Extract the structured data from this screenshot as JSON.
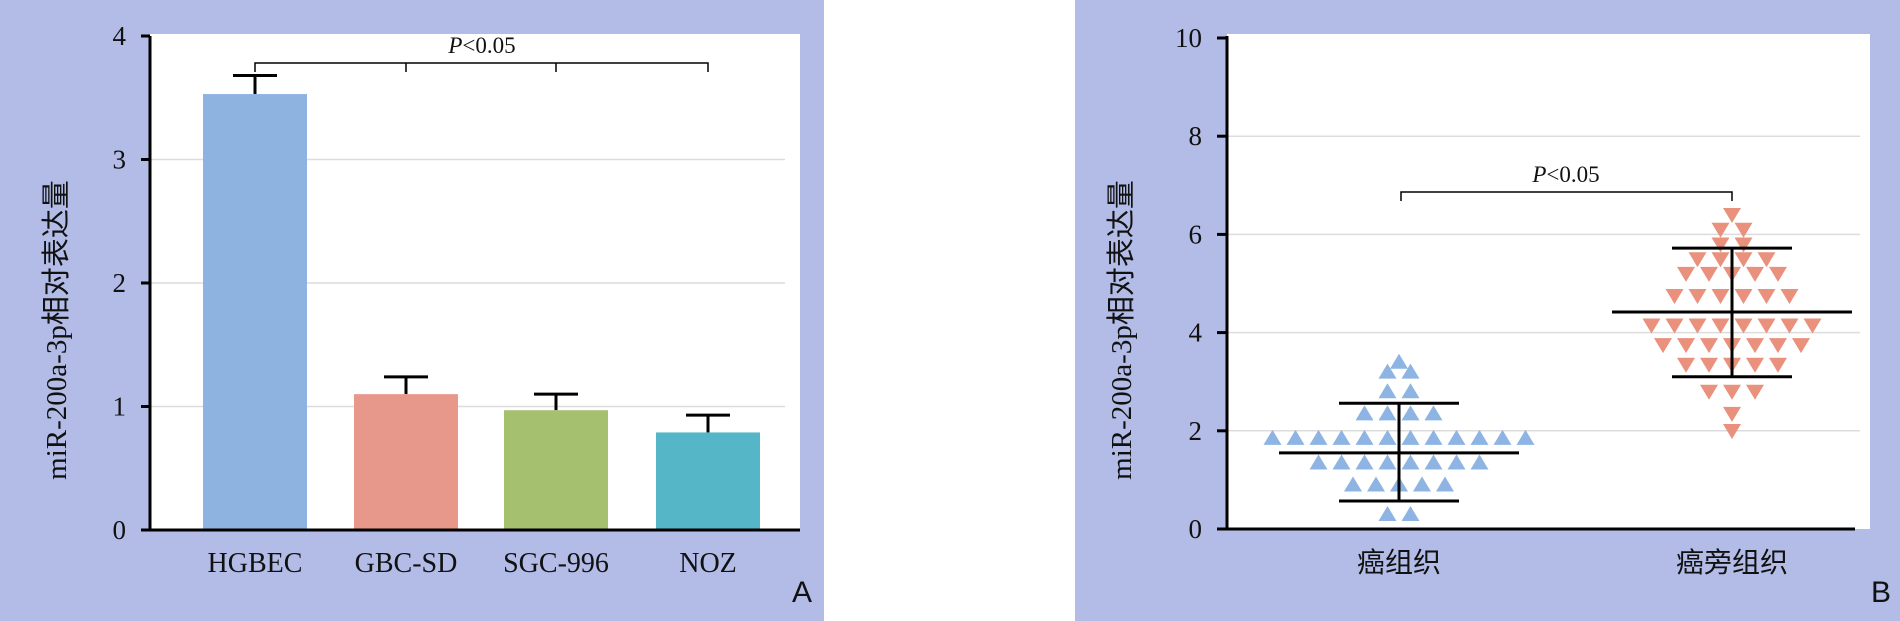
{
  "chart_data": [
    {
      "type": "bar",
      "panel_label": "A",
      "ylabel": "miR-200a-3p相对表达量",
      "ylim": [
        0,
        4
      ],
      "yticks": [
        "0",
        "1",
        "2",
        "3",
        "4"
      ],
      "grid": true,
      "categories": [
        "HGBEC",
        "GBC-SD",
        "SGC-996",
        "NOZ"
      ],
      "values": [
        3.53,
        1.1,
        0.97,
        0.79
      ],
      "errors": [
        0.15,
        0.14,
        0.13,
        0.14
      ],
      "colors": [
        "#8FB3E1",
        "#E8988A",
        "#A5C06E",
        "#55B6C7"
      ],
      "annotation": {
        "p_italic": "P",
        "rest": "<0.05"
      }
    },
    {
      "type": "scatter",
      "panel_label": "B",
      "ylabel": "miR-200a-3p相对表达量",
      "ylim": [
        0,
        10
      ],
      "yticks": [
        "0",
        "2",
        "4",
        "6",
        "8",
        "10"
      ],
      "grid": true,
      "categories": [
        "癌组织",
        "癌旁组织"
      ],
      "series": [
        {
          "values": [
            3.4,
            3.2,
            3.2,
            2.8,
            2.8,
            2.35,
            2.35,
            2.35,
            2.35,
            1.85,
            1.85,
            1.85,
            1.85,
            1.85,
            1.85,
            1.85,
            1.85,
            1.85,
            1.85,
            1.85,
            1.85,
            1.35,
            1.35,
            1.35,
            1.35,
            1.35,
            1.35,
            1.35,
            1.35,
            0.9,
            0.9,
            0.9,
            0.9,
            0.9,
            0.3,
            0.3
          ],
          "mean": 1.55,
          "sd_low": 0.57,
          "sd_high": 2.56,
          "color": "#8DB4E2",
          "marker": "triangle-up"
        },
        {
          "values": [
            6.4,
            6.1,
            6.1,
            5.8,
            5.8,
            5.5,
            5.5,
            5.5,
            5.5,
            5.2,
            5.2,
            5.2,
            5.2,
            5.2,
            4.75,
            4.75,
            4.75,
            4.75,
            4.75,
            4.75,
            4.15,
            4.15,
            4.15,
            4.15,
            4.15,
            4.15,
            4.15,
            4.15,
            3.75,
            3.75,
            3.75,
            3.75,
            3.75,
            3.75,
            3.75,
            3.35,
            3.35,
            3.35,
            3.35,
            3.35,
            2.8,
            2.8,
            2.8,
            2.35,
            2.0
          ],
          "mean": 4.42,
          "sd_low": 3.1,
          "sd_high": 5.72,
          "color": "#E9917D",
          "marker": "triangle-down"
        }
      ],
      "annotation": {
        "p_italic": "P",
        "rest": "<0.05"
      }
    }
  ]
}
